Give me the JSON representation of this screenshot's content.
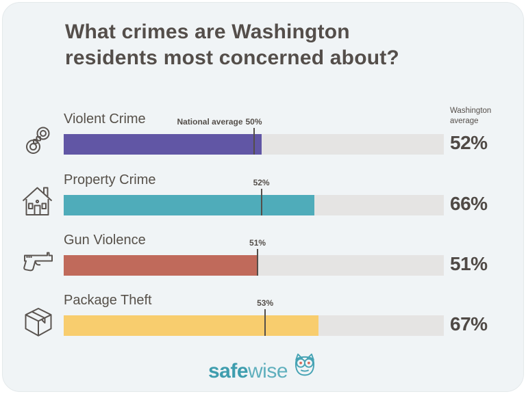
{
  "title": "What crimes are Washington\nresidents most concerned about?",
  "right_column_header": "Washington\naverage",
  "chart_data": {
    "type": "bar",
    "orientation": "horizontal",
    "title": "What crimes are Washington residents most concerned about?",
    "categories": [
      "Violent Crime",
      "Property Crime",
      "Gun Violence",
      "Package Theft"
    ],
    "series": [
      {
        "name": "Washington average",
        "values": [
          52,
          66,
          51,
          67
        ]
      },
      {
        "name": "National average",
        "values": [
          50,
          52,
          51,
          53
        ]
      }
    ],
    "unit": "%",
    "xlim": [
      0,
      100
    ],
    "grid": false,
    "legend_position": "none",
    "value_label_position": "right",
    "national_marker_style": "vertical-tick",
    "bar_colors": [
      "#6156A5",
      "#4FACBA",
      "#C06A5B",
      "#F8CD6E"
    ],
    "track_color": "#E5E4E3"
  },
  "rows": [
    {
      "label": "Violent Crime",
      "icon": "handcuffs-icon",
      "color": "#6156A5",
      "washington_pct": 52,
      "washington_label": "52%",
      "national_pct": 50,
      "national_prefix": "National average",
      "national_value": "50%"
    },
    {
      "label": "Property Crime",
      "icon": "house-icon",
      "color": "#4FACBA",
      "washington_pct": 66,
      "washington_label": "66%",
      "national_pct": 52,
      "national_value": "52%"
    },
    {
      "label": "Gun Violence",
      "icon": "gun-icon",
      "color": "#C06A5B",
      "washington_pct": 51,
      "washington_label": "51%",
      "national_pct": 51,
      "national_value": "51%"
    },
    {
      "label": "Package Theft",
      "icon": "package-icon",
      "color": "#F8CD6E",
      "washington_pct": 67,
      "washington_label": "67%",
      "national_pct": 53,
      "national_value": "53%"
    }
  ],
  "footer": {
    "logo_safe": "safe",
    "logo_wise": "wise",
    "logo_icon": "owl-icon",
    "safe_color": "#3E9DAE",
    "wise_color": "#5FAFBD",
    "owl_eye_color": "#D8695B"
  }
}
